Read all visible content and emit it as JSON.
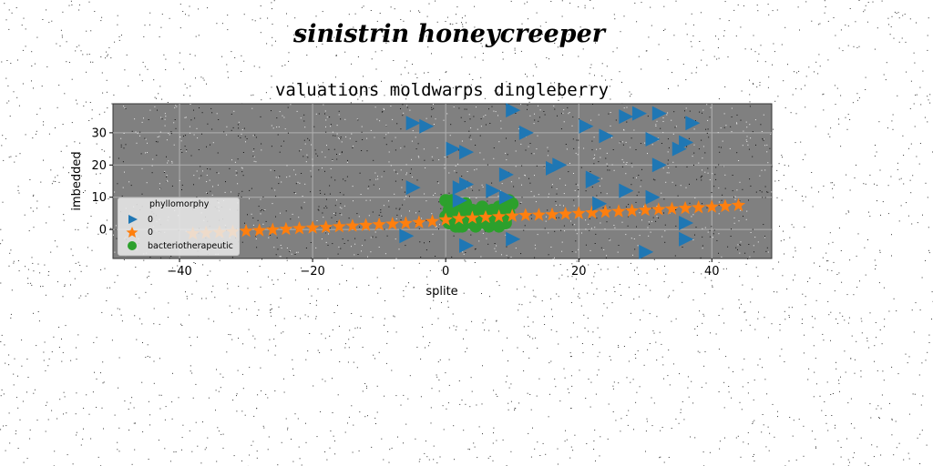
{
  "figure_title": "sinistrin honeycreeper",
  "chart_data": {
    "type": "scatter",
    "title": "valuations moldwarps dingleberry",
    "xlabel": "splite",
    "ylabel": "imbedded",
    "xlim": [
      -50,
      49
    ],
    "ylim": [
      -9,
      39
    ],
    "xticks": [
      -40,
      -20,
      0,
      20,
      40
    ],
    "yticks": [
      0,
      10,
      20,
      30
    ],
    "grid": true,
    "background": "#808080",
    "legend": {
      "title": "phyllomorphy",
      "placement": "lower-left"
    },
    "series": [
      {
        "name": "0",
        "marker": "triangle-right",
        "color": "#1f77b4",
        "x": [
          -5,
          -3,
          10,
          1,
          3,
          21,
          24,
          29,
          32,
          37,
          12,
          17,
          22,
          27,
          31,
          36,
          -5,
          3,
          9,
          16,
          22,
          27,
          32,
          35,
          9,
          2,
          23,
          31,
          36,
          -6,
          3,
          10,
          30,
          36,
          7,
          2
        ],
        "y": [
          33,
          32,
          37,
          25,
          24,
          32,
          29,
          36,
          36,
          33,
          30,
          20,
          16,
          35,
          28,
          27,
          13,
          14,
          17,
          19,
          15,
          12,
          20,
          25,
          10,
          13,
          8,
          10,
          2,
          -2,
          -5,
          -3,
          -7,
          -3,
          12,
          9
        ]
      },
      {
        "name": "0",
        "marker": "star",
        "color": "#ff7f0e",
        "x": [
          -38,
          -36,
          -34,
          -32,
          -30,
          -28,
          -26,
          -24,
          -22,
          -20,
          -18,
          -16,
          -14,
          -12,
          -10,
          -8,
          -6,
          -4,
          -2,
          0,
          2,
          4,
          6,
          8,
          10,
          12,
          14,
          16,
          18,
          20,
          22,
          24,
          26,
          28,
          30,
          32,
          34,
          36,
          38,
          40,
          42,
          44
        ],
        "y": [
          -1.3,
          -1.1,
          -0.9,
          -0.7,
          -0.5,
          -0.3,
          -0.1,
          0.1,
          0.3,
          0.5,
          0.7,
          0.9,
          1.1,
          1.3,
          1.5,
          1.7,
          1.9,
          2.2,
          2.5,
          3,
          3.4,
          3.6,
          3.8,
          4,
          4.2,
          4.4,
          4.5,
          4.6,
          4.8,
          5,
          5.2,
          5.4,
          5.6,
          5.8,
          6,
          6.2,
          6.4,
          6.6,
          6.8,
          7,
          7.2,
          7.5
        ]
      },
      {
        "name": "bacteriotherapeutic",
        "marker": "circle",
        "color": "#2ca02c",
        "x": [
          0,
          0.5,
          1,
          1.5,
          2,
          2.5,
          3,
          3.5,
          4,
          4.5,
          5,
          5.5,
          6,
          6.5,
          7,
          7.5,
          8,
          8.5,
          9,
          9.5,
          10,
          1,
          2,
          3,
          4,
          5,
          6,
          7,
          8,
          9,
          0.5,
          1.5,
          2.5,
          3.5,
          4.5,
          5.5,
          6.5,
          7.5,
          8.5,
          9.5,
          1,
          3,
          5,
          7,
          9,
          2,
          4,
          6,
          8,
          0
        ],
        "y": [
          9,
          6,
          3,
          1,
          2,
          4,
          5,
          3,
          2,
          1,
          3,
          5,
          2,
          1,
          3,
          2,
          4,
          3,
          2,
          5,
          8,
          9,
          7,
          4,
          6,
          5,
          3,
          6,
          7,
          9,
          2,
          4,
          1,
          3,
          5,
          7,
          4,
          2,
          6,
          9,
          7,
          8,
          6,
          5,
          3,
          1,
          2,
          4,
          1,
          4
        ]
      }
    ]
  }
}
